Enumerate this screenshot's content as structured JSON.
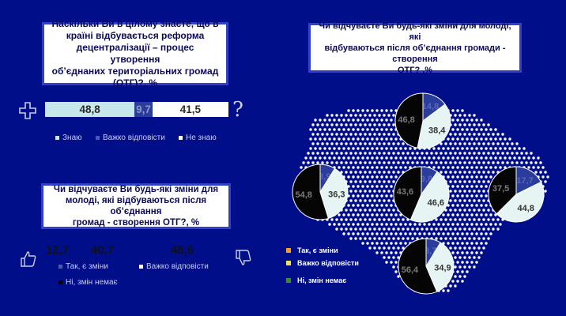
{
  "question1": {
    "lines": [
      "Наскільки Ви в цілому знаєте, що в",
      "країні відбувається реформа",
      "децентралізації – процес утворення",
      "об’єднаних територіальних громад",
      "(ОТГ)?, %"
    ]
  },
  "knowledge_bar": {
    "know": "48,8",
    "hard": "9,7",
    "dont": "41,5",
    "know_pct": 48.8,
    "hard_pct": 9.7,
    "dont_pct": 41.5
  },
  "knowledge_legend": [
    "Знаю",
    "Важко відповісти",
    "Не знаю"
  ],
  "question2": {
    "lines": [
      "Чи відчуваєте Ви будь-які зміни для",
      "молоді, які відбуваються після об’єднання",
      "громад - створення ОТГ?, %"
    ]
  },
  "changes_values": [
    "12,7",
    "40,7",
    "46,6"
  ],
  "changes_legend": [
    "Так, є зміни",
    "Важко відповісти",
    "Ні, змін немає"
  ],
  "question3": {
    "lines": [
      "Чи відчуваєте Ви будь-які зміни для молоді, які",
      "відбуваються після об’єднання громади - створення",
      "ОТГ? ,%"
    ]
  },
  "map_legend": [
    "Так, є зміни",
    "Важко відповісти",
    "Ні, змін немає"
  ],
  "colors": {
    "background": "#000e8a",
    "know": "#c6e8ea",
    "hard": "#2b3d9c",
    "dont": "#ffffff",
    "pie_yes": "#2b3d9c",
    "pie_hard": "#e6f5f4",
    "pie_no": "#050505",
    "legend_yes": "#f4a21c",
    "legend_hard": "#f3e24a",
    "legend_no": "#3e8a3a"
  },
  "chart_data": [
    {
      "type": "pie",
      "region": "north",
      "values": [
        14.8,
        38.4,
        46.8
      ],
      "labels": [
        "14,8",
        "38,4",
        "46,8"
      ]
    },
    {
      "type": "pie",
      "region": "west",
      "values": [
        8.9,
        36.3,
        54.8
      ],
      "labels": [
        "8,9",
        "36,3",
        "54,8"
      ]
    },
    {
      "type": "pie",
      "region": "center",
      "values": [
        9.8,
        46.6,
        43.6
      ],
      "labels": [
        "9,8",
        "46,6",
        "43,6"
      ]
    },
    {
      "type": "pie",
      "region": "east",
      "values": [
        17.7,
        44.8,
        37.5
      ],
      "labels": [
        "17,7",
        "44,8",
        "37,5"
      ]
    },
    {
      "type": "pie",
      "region": "south",
      "values": [
        8.7,
        34.9,
        56.4
      ],
      "labels": [
        "8,7",
        "34,9",
        "56,4"
      ]
    }
  ]
}
